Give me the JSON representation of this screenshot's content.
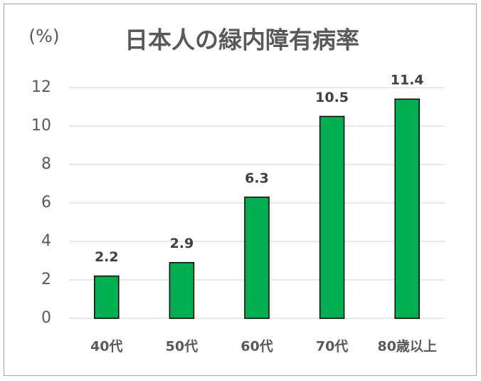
{
  "chart_data": {
    "type": "bar",
    "title": "日本人の緑内障有病率",
    "y_label": "(%)",
    "categories": [
      "40代",
      "50代",
      "60代",
      "70代",
      "80歳以上"
    ],
    "values": [
      2.2,
      2.9,
      6.3,
      10.5,
      11.4
    ],
    "color": "#00b050",
    "ylim": [
      0,
      12
    ],
    "yticks": [
      0,
      2,
      4,
      6,
      8,
      10,
      12
    ],
    "grid": true,
    "data_labels": true
  }
}
